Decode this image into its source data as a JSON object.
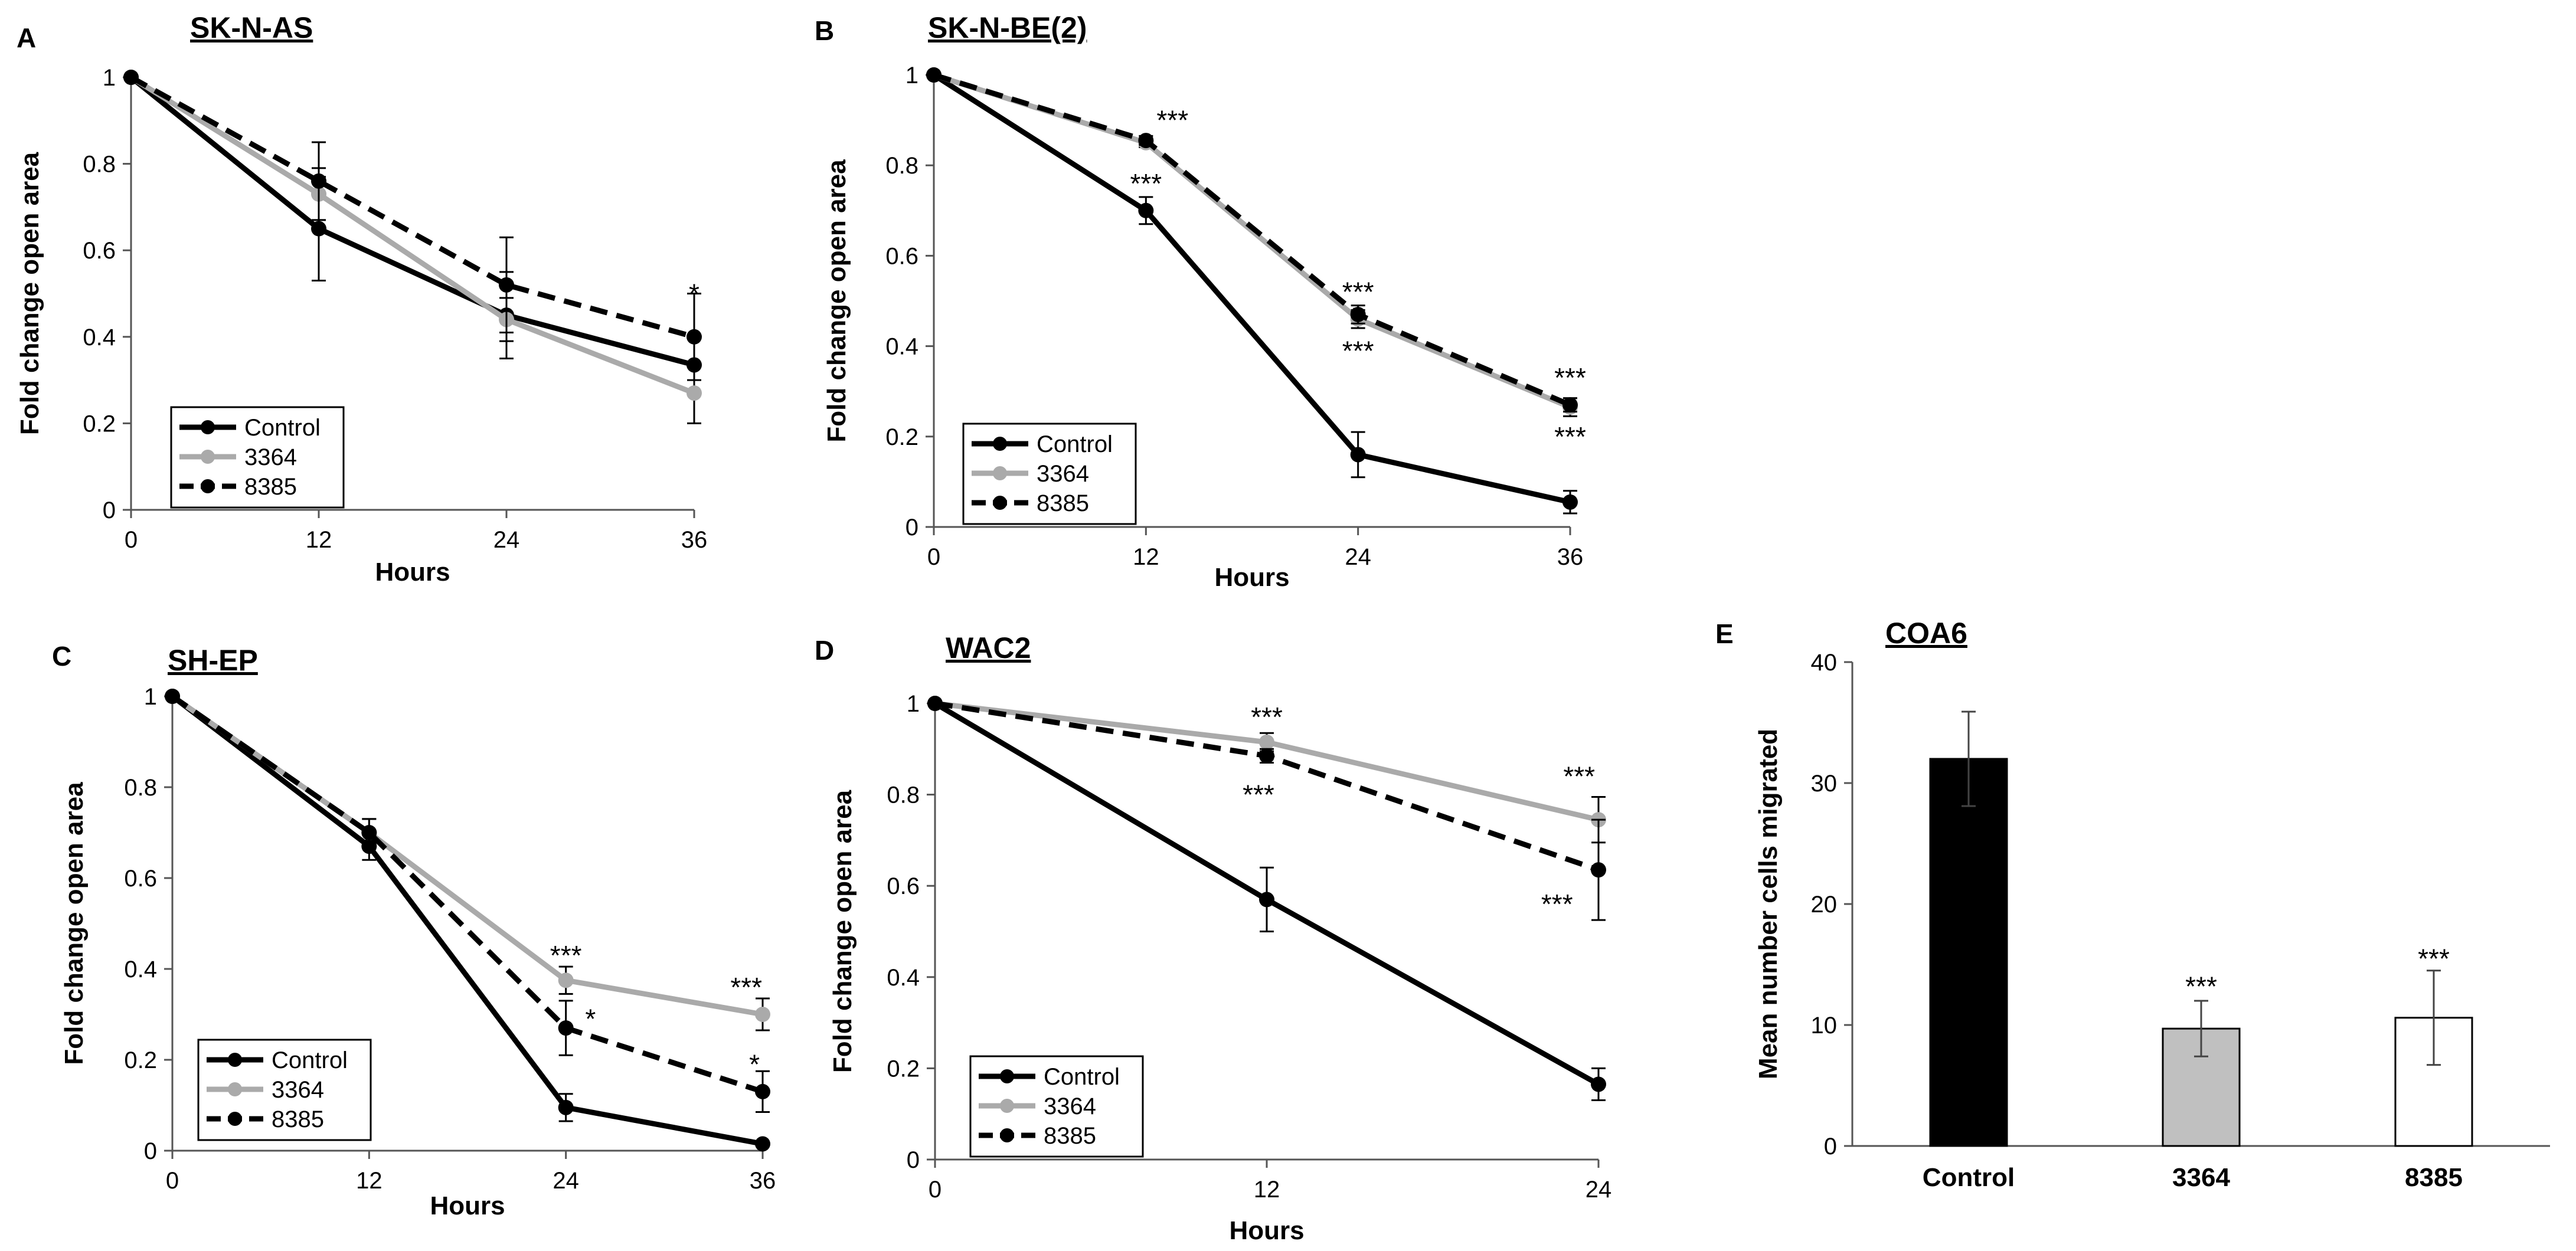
{
  "chart_data": [
    {
      "panel": "A",
      "type": "line",
      "title": "SK-N-AS",
      "xlabel": "Hours",
      "ylabel": "Fold change open area",
      "x": [
        0,
        12,
        24,
        36
      ],
      "xlim": [
        0,
        36
      ],
      "ylim": [
        0,
        1
      ],
      "xticks": [
        "0",
        "12",
        "24",
        "36"
      ],
      "yticks": [
        "0",
        "0.2",
        "0.4",
        "0.6",
        "0.8",
        "1"
      ],
      "series": [
        {
          "name": "Control",
          "values": [
            1,
            0.65,
            0.45,
            0.335
          ],
          "errors": [
            0,
            0.12,
            0.1,
            0.065
          ],
          "color": "#000000",
          "dashed": false
        },
        {
          "name": "3364",
          "values": [
            1,
            0.73,
            0.44,
            0.27
          ],
          "errors": [
            0,
            0.06,
            0.05,
            0.07
          ],
          "color": "#aaaaaa",
          "dashed": false
        },
        {
          "name": "8385",
          "values": [
            1,
            0.76,
            0.52,
            0.4
          ],
          "errors": [
            0,
            0.09,
            0.11,
            0.1
          ],
          "color": "#000000",
          "dashed": true
        }
      ],
      "annotations": [
        {
          "text": "*",
          "x": 36,
          "y": 0.5
        }
      ],
      "legend": "bottom-left"
    },
    {
      "panel": "B",
      "type": "line",
      "title": "SK-N-BE(2)",
      "xlabel": "Hours",
      "ylabel": "Fold change open area",
      "x": [
        0,
        12,
        24,
        36
      ],
      "xlim": [
        0,
        36
      ],
      "ylim": [
        0,
        1
      ],
      "xticks": [
        "0",
        "12",
        "24",
        "36"
      ],
      "yticks": [
        "0",
        "0.2",
        "0.4",
        "0.6",
        "0.8",
        "1"
      ],
      "series": [
        {
          "name": "Control",
          "values": [
            1,
            0.7,
            0.16,
            0.055
          ],
          "errors": [
            0,
            0.03,
            0.05,
            0.025
          ],
          "color": "#000000",
          "dashed": false
        },
        {
          "name": "3364",
          "values": [
            1,
            0.85,
            0.46,
            0.265
          ],
          "errors": [
            0,
            0.01,
            0.02,
            0.02
          ],
          "color": "#aaaaaa",
          "dashed": false
        },
        {
          "name": "8385",
          "values": [
            1,
            0.855,
            0.47,
            0.27
          ],
          "errors": [
            0,
            0.01,
            0.02,
            0.015
          ],
          "color": "#000000",
          "dashed": true
        }
      ],
      "annotations": [
        {
          "text": "***",
          "x": 13.5,
          "y": 0.9
        },
        {
          "text": "***",
          "x": 12,
          "y": 0.76
        },
        {
          "text": "***",
          "x": 24,
          "y": 0.52
        },
        {
          "text": "***",
          "x": 24,
          "y": 0.39
        },
        {
          "text": "***",
          "x": 36,
          "y": 0.33
        },
        {
          "text": "***",
          "x": 36,
          "y": 0.2
        }
      ],
      "legend": "bottom-left"
    },
    {
      "panel": "C",
      "type": "line",
      "title": "SH-EP",
      "xlabel": "Hours",
      "ylabel": "Fold change open area",
      "x": [
        0,
        12,
        24,
        36
      ],
      "xlim": [
        0,
        36
      ],
      "ylim": [
        0,
        1
      ],
      "xticks": [
        "0",
        "12",
        "24",
        "36"
      ],
      "yticks": [
        "0",
        "0.2",
        "0.4",
        "0.6",
        "0.8",
        "1"
      ],
      "series": [
        {
          "name": "Control",
          "values": [
            1,
            0.67,
            0.095,
            0.015
          ],
          "errors": [
            0,
            0.03,
            0.03,
            0.005
          ],
          "color": "#000000",
          "dashed": false
        },
        {
          "name": "3364",
          "values": [
            1,
            0.7,
            0.375,
            0.3
          ],
          "errors": [
            0,
            0.03,
            0.03,
            0.035
          ],
          "color": "#aaaaaa",
          "dashed": false
        },
        {
          "name": "8385",
          "values": [
            1,
            0.7,
            0.27,
            0.13
          ],
          "errors": [
            0,
            0.03,
            0.06,
            0.045
          ],
          "color": "#000000",
          "dashed": true
        }
      ],
      "annotations": [
        {
          "text": "***",
          "x": 24,
          "y": 0.43
        },
        {
          "text": "*",
          "x": 25.5,
          "y": 0.29
        },
        {
          "text": "***",
          "x": 35,
          "y": 0.36
        },
        {
          "text": "*",
          "x": 35.5,
          "y": 0.19
        }
      ],
      "legend": "bottom-left"
    },
    {
      "panel": "D",
      "type": "line",
      "title": "WAC2",
      "xlabel": "Hours",
      "ylabel": "Fold change open area",
      "x": [
        0,
        12,
        24
      ],
      "xlim": [
        0,
        24
      ],
      "ylim": [
        0,
        1
      ],
      "xticks": [
        "0",
        "12",
        "24"
      ],
      "yticks": [
        "0",
        "0.2",
        "0.4",
        "0.6",
        "0.8",
        "1"
      ],
      "series": [
        {
          "name": "Control",
          "values": [
            1,
            0.57,
            0.165
          ],
          "errors": [
            0,
            0.07,
            0.035
          ],
          "color": "#000000",
          "dashed": false
        },
        {
          "name": "3364",
          "values": [
            1,
            0.915,
            0.745
          ],
          "errors": [
            0,
            0.02,
            0.05
          ],
          "color": "#aaaaaa",
          "dashed": false
        },
        {
          "name": "8385",
          "values": [
            1,
            0.885,
            0.635
          ],
          "errors": [
            0,
            0.015,
            0.11
          ],
          "color": "#000000",
          "dashed": true
        }
      ],
      "annotations": [
        {
          "text": "***",
          "x": 12,
          "y": 0.97
        },
        {
          "text": "***",
          "x": 11.7,
          "y": 0.8
        },
        {
          "text": "***",
          "x": 23.3,
          "y": 0.84
        },
        {
          "text": "***",
          "x": 22.5,
          "y": 0.56
        }
      ],
      "legend": "bottom-left"
    },
    {
      "panel": "E",
      "type": "bar",
      "title": "COA6",
      "xlabel": "",
      "ylabel": "Mean number cells migrated",
      "categories": [
        "Control",
        "3364",
        "8385"
      ],
      "values": [
        32,
        9.7,
        10.6
      ],
      "errors": [
        3.9,
        2.3,
        3.9
      ],
      "colors": [
        "#000000",
        "#c0c0c0",
        "#ffffff"
      ],
      "ylim": [
        0,
        40
      ],
      "yticks": [
        "0",
        "10",
        "20",
        "30",
        "40"
      ],
      "annotations": [
        {
          "text": "***",
          "category": "3364",
          "y": 13.2
        },
        {
          "text": "***",
          "category": "8385",
          "y": 15.5
        }
      ]
    }
  ]
}
